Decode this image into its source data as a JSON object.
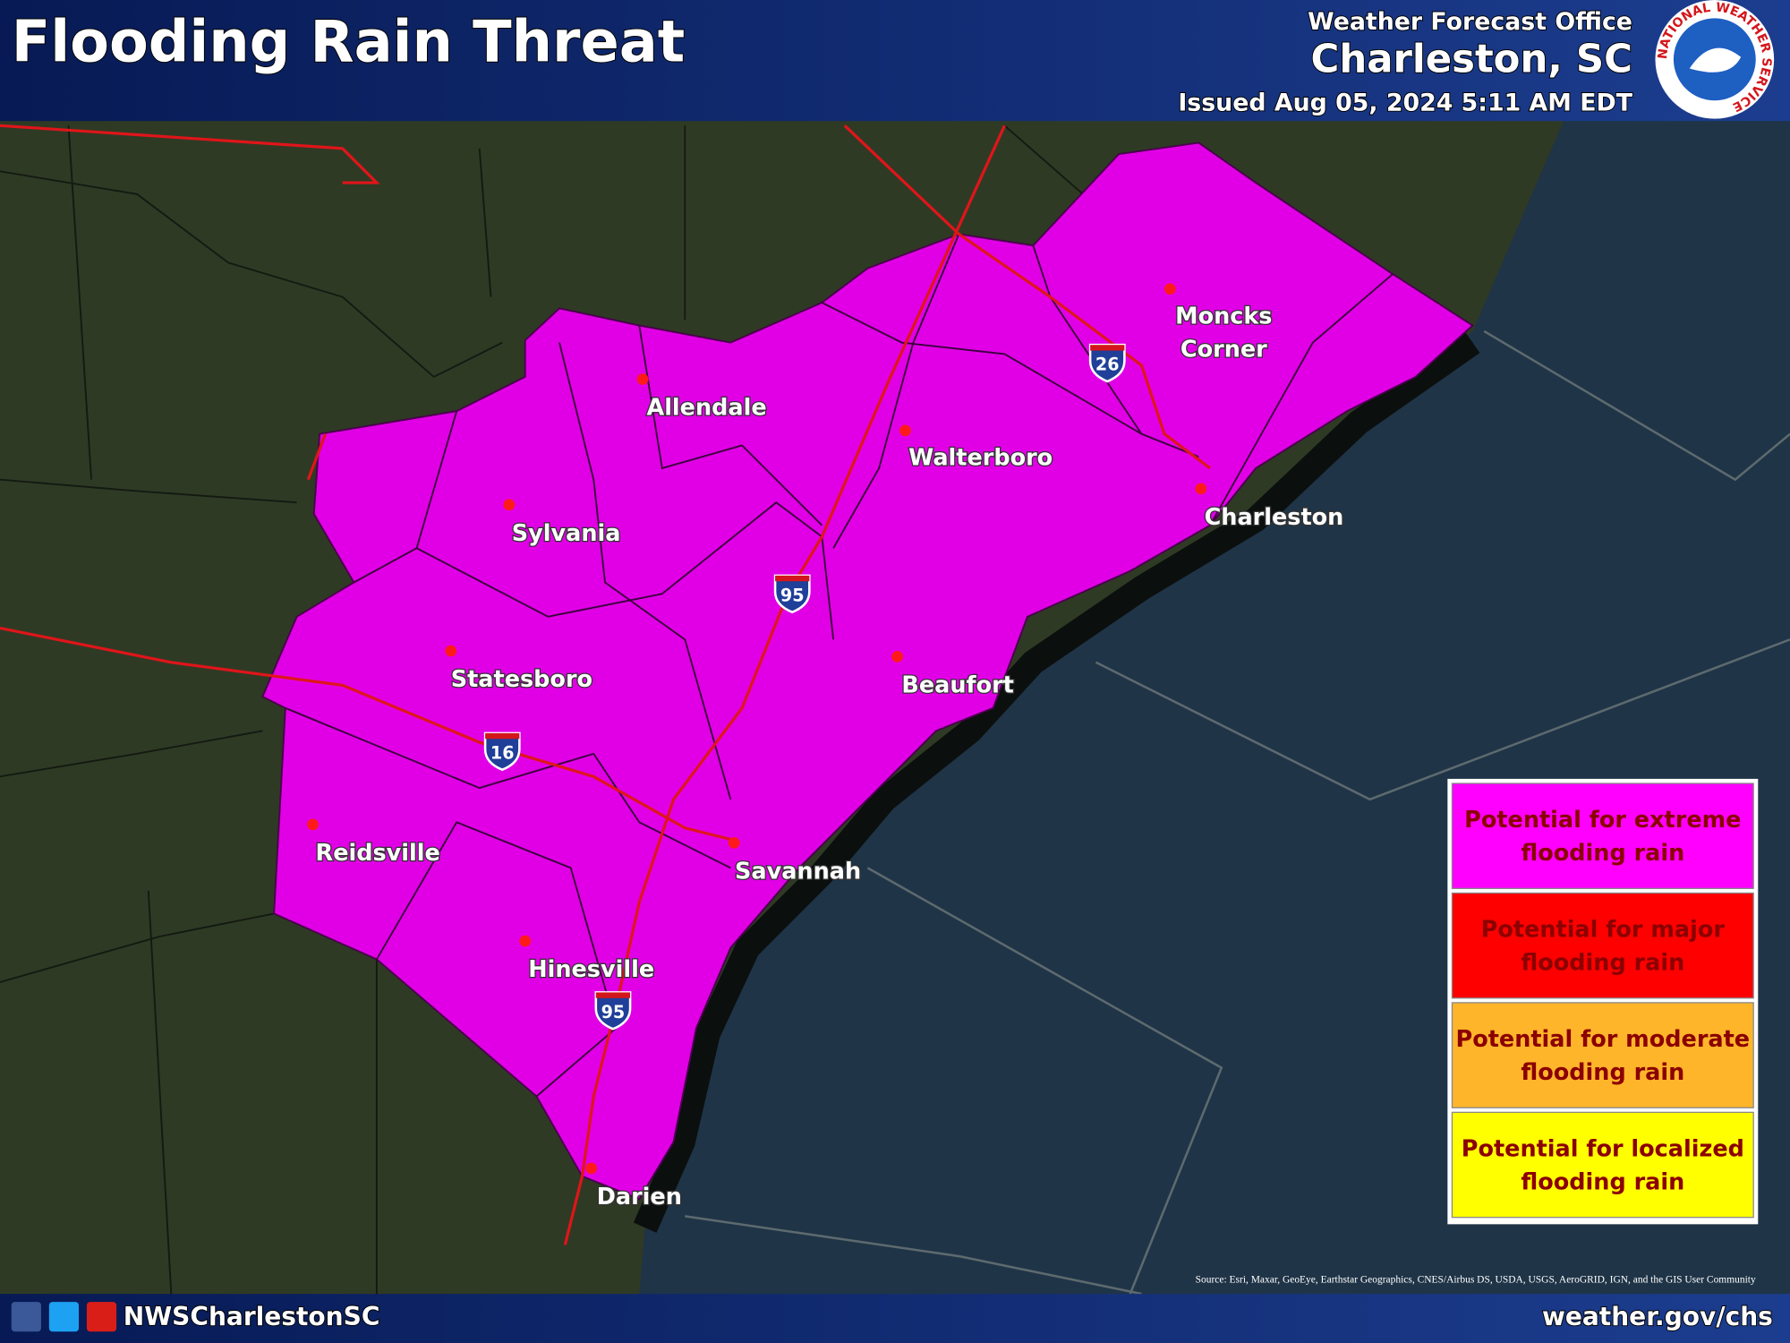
{
  "header": {
    "title": "Flooding Rain Threat",
    "office_label": "Weather Forecast Office",
    "office": "Charleston, SC",
    "issued": "Issued Aug 05, 2024 5:11 AM EDT",
    "logo_text": "NATIONAL WEATHER SERVICE"
  },
  "cities": [
    {
      "lines": [
        "Moncks",
        "Corner"
      ]
    },
    {
      "lines": [
        "Allendale"
      ]
    },
    {
      "lines": [
        "Walterboro"
      ]
    },
    {
      "lines": [
        "Sylvania"
      ]
    },
    {
      "lines": [
        "Charleston"
      ]
    },
    {
      "lines": [
        "Beaufort"
      ]
    },
    {
      "lines": [
        "Statesboro"
      ]
    },
    {
      "lines": [
        "Savannah"
      ]
    },
    {
      "lines": [
        "Reidsville"
      ]
    },
    {
      "lines": [
        "Hinesville"
      ]
    },
    {
      "lines": [
        "Darien"
      ]
    }
  ],
  "shields": [
    "26",
    "95",
    "16",
    "95"
  ],
  "legend": [
    {
      "lines": [
        "Potential for extreme",
        "flooding rain"
      ]
    },
    {
      "lines": [
        "Potential for major",
        "flooding rain"
      ]
    },
    {
      "lines": [
        "Potential for moderate",
        "flooding rain"
      ]
    },
    {
      "lines": [
        "Potential for localized",
        "flooding rain"
      ]
    }
  ],
  "source": "Source: Esri, Maxar, GeoEye, Earthstar Geographics, CNES/Airbus DS, USDA, USGS, AeroGRID, IGN, and the GIS User Community",
  "footer": {
    "handle": "NWSCharlestonSC",
    "url": "weather.gov/chs"
  }
}
